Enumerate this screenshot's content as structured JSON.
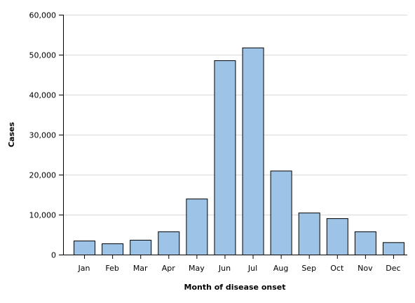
{
  "chart_data": {
    "type": "bar",
    "title": "",
    "xlabel": "Month of disease onset",
    "ylabel": "Cases",
    "categories": [
      "Jan",
      "Feb",
      "Mar",
      "Apr",
      "May",
      "Jun",
      "Jul",
      "Aug",
      "Sep",
      "Oct",
      "Nov",
      "Dec"
    ],
    "values": [
      3500,
      2800,
      3700,
      5800,
      14000,
      48600,
      51800,
      21000,
      10500,
      9100,
      5800,
      3100
    ],
    "ylim": [
      0,
      60000
    ],
    "yticks": [
      0,
      10000,
      20000,
      30000,
      40000,
      50000,
      60000
    ],
    "ytick_labels": [
      "0",
      "10,000",
      "20,000",
      "30,000",
      "40,000",
      "50,000",
      "60,000"
    ],
    "grid": true,
    "legend": "none",
    "colors": {
      "bar_fill": "#9dc3e6",
      "bar_stroke": "#000000",
      "grid": "#d9d9d9",
      "axis": "#000000"
    }
  }
}
